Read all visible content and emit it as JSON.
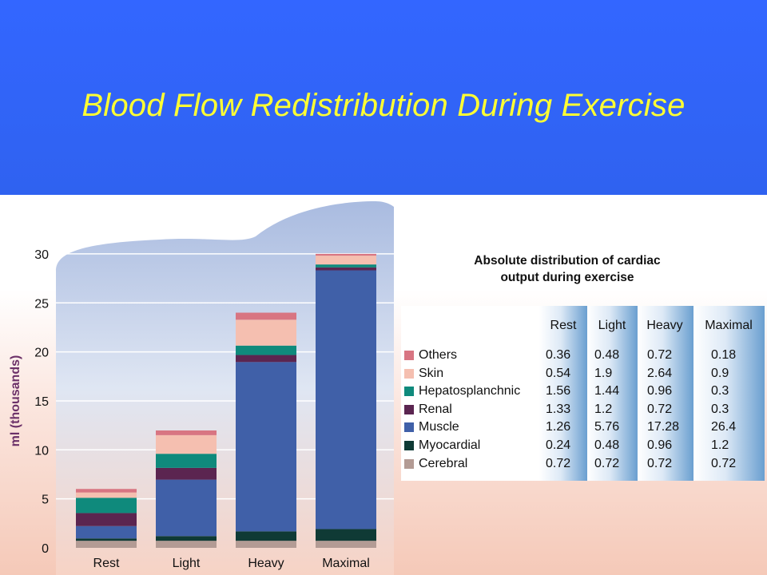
{
  "title": "Blood Flow Redistribution During Exercise",
  "table_title_line1": "Absolute distribution of cardiac",
  "table_title_line2": "output during exercise",
  "chart_data": {
    "type": "bar",
    "stacked": true,
    "ylabel": "ml (thousands)",
    "ylim": [
      0,
      30
    ],
    "yticks": [
      "0",
      "5",
      "10",
      "15",
      "20",
      "25",
      "30"
    ],
    "categories": [
      "Rest",
      "Light",
      "Heavy",
      "Maximal"
    ],
    "series": [
      {
        "name": "Cerebral",
        "color": "#b39b94",
        "values": [
          0.72,
          0.72,
          0.72,
          0.72
        ]
      },
      {
        "name": "Myocardial",
        "color": "#0f3a35",
        "values": [
          0.24,
          0.48,
          0.96,
          1.2
        ]
      },
      {
        "name": "Muscle",
        "color": "#4060a8",
        "values": [
          1.26,
          5.76,
          17.28,
          26.4
        ]
      },
      {
        "name": "Renal",
        "color": "#5b2550",
        "values": [
          1.33,
          1.2,
          0.72,
          0.3
        ]
      },
      {
        "name": "Hepatosplanchnic",
        "color": "#0f8a7c",
        "values": [
          1.56,
          1.44,
          0.96,
          0.3
        ]
      },
      {
        "name": "Skin",
        "color": "#f5bfb0",
        "values": [
          0.54,
          1.9,
          2.64,
          0.9
        ]
      },
      {
        "name": "Others",
        "color": "#d87582",
        "values": [
          0.36,
          0.48,
          0.72,
          0.18
        ]
      }
    ]
  },
  "table": {
    "columns": [
      "Rest",
      "Light",
      "Heavy",
      "Maximal"
    ],
    "rows": [
      {
        "label": "Others",
        "values": [
          "0.36",
          "0.48",
          "0.72",
          "0.18"
        ]
      },
      {
        "label": "Skin",
        "values": [
          "0.54",
          "1.9",
          "2.64",
          "0.9"
        ]
      },
      {
        "label": "Hepatosplanchnic",
        "values": [
          "1.56",
          "1.44",
          "0.96",
          "0.3"
        ]
      },
      {
        "label": "Renal",
        "values": [
          "1.33",
          "1.2",
          "0.72",
          "0.3"
        ]
      },
      {
        "label": "Muscle",
        "values": [
          "1.26",
          "5.76",
          "17.28",
          "26.4"
        ]
      },
      {
        "label": "Myocardial",
        "values": [
          "0.24",
          "0.48",
          "0.96",
          "1.2"
        ]
      },
      {
        "label": "Cerebral",
        "values": [
          "0.72",
          "0.72",
          "0.72",
          "0.72"
        ]
      }
    ]
  }
}
